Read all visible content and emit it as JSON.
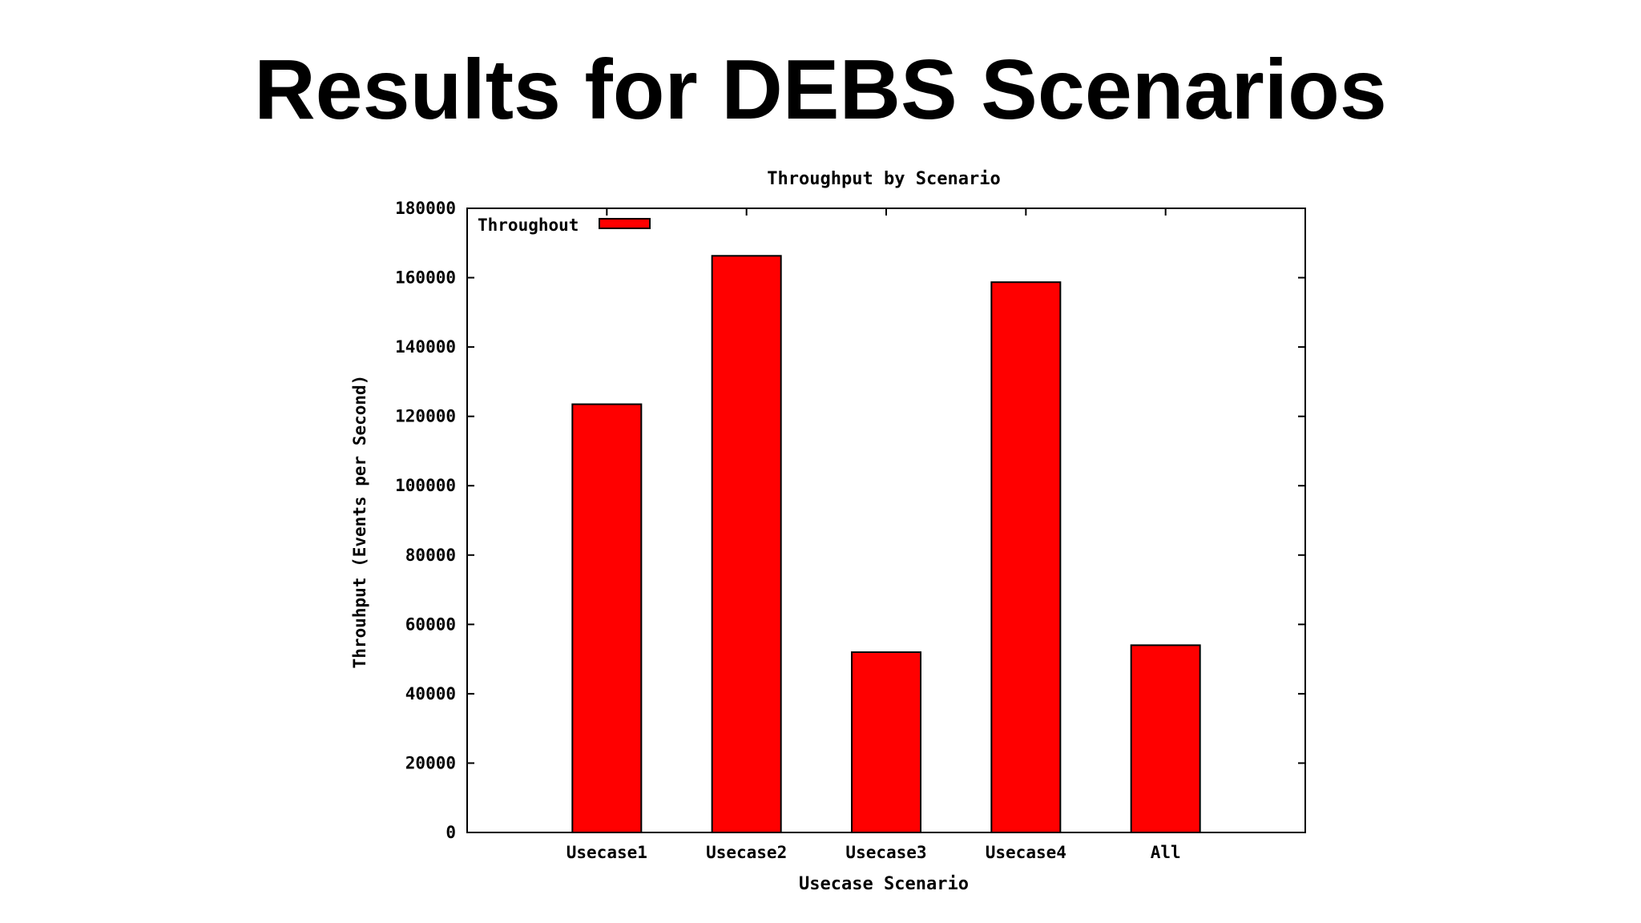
{
  "slide": {
    "title": "Results for DEBS Scenarios"
  },
  "chart_data": {
    "type": "bar",
    "title": "Throughput by Scenario",
    "xlabel": "Usecase Scenario",
    "ylabel": "Throuhput (Events per Second)",
    "categories": [
      "Usecase1",
      "Usecase2",
      "Usecase3",
      "Usecase4",
      "All"
    ],
    "series": [
      {
        "name": "Throughout",
        "color": "#ff0000",
        "values": [
          123500,
          166300,
          52000,
          158700,
          54000
        ]
      }
    ],
    "ylim": [
      0,
      180000
    ],
    "yticks": [
      0,
      20000,
      40000,
      60000,
      80000,
      100000,
      120000,
      140000,
      160000,
      180000
    ],
    "grid": false,
    "legend_position": "top-left"
  }
}
